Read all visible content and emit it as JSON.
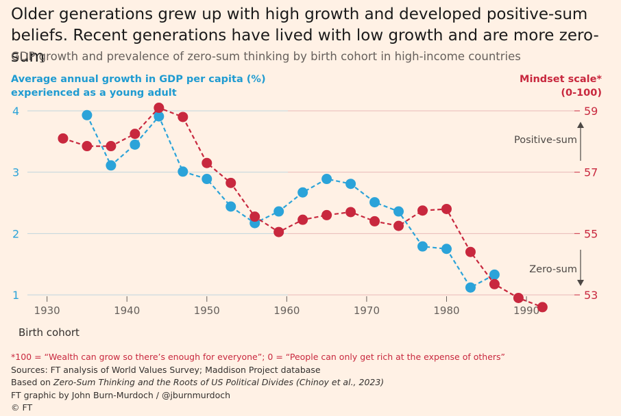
{
  "title": "Older generations grew up with high growth and developed positive-sum beliefs. Recent generations have lived with low growth and are more zero-sum",
  "subtitle": "GDP growth and prevalence of zero-sum thinking by birth cohort in high-income countries",
  "colors": {
    "blue": "#2BA3D9",
    "red": "#C8283E",
    "grid": "#E2C9B8",
    "background": "#FFF1E5"
  },
  "chart_data": {
    "type": "line",
    "xlabel": "Birth cohort",
    "x_ticks": [
      1930,
      1940,
      1950,
      1960,
      1970,
      1980,
      1990
    ],
    "xlim": [
      1926,
      1996
    ],
    "left_axis": {
      "label_line1": "Average annual growth in GDP per capita (%)",
      "label_line2": "experienced as a young adult",
      "ticks": [
        1,
        2,
        3,
        4
      ],
      "ylim": [
        0.75,
        4.1
      ]
    },
    "right_axis": {
      "label_line1": "Mindset scale*",
      "label_line2": "(0-100)",
      "ticks": [
        53,
        55,
        57,
        59
      ],
      "ylim": [
        52.45,
        59.9
      ]
    },
    "annotations": {
      "positive": "Positive-sum",
      "zero": "Zero-sum"
    },
    "series": [
      {
        "axis": "left",
        "color": "#2BA3D9",
        "x": [
          1935,
          1938,
          1941,
          1944,
          1947,
          1950,
          1953,
          1956,
          1959,
          1962,
          1965,
          1968,
          1971,
          1974,
          1977,
          1980,
          1983,
          1986
        ],
        "values": [
          3.93,
          3.11,
          3.45,
          3.91,
          3.01,
          2.89,
          2.44,
          2.17,
          2.36,
          2.67,
          2.89,
          2.81,
          2.51,
          2.36,
          1.79,
          1.75,
          1.12,
          1.33
        ]
      },
      {
        "axis": "right",
        "color": "#C8283E",
        "x": [
          1932,
          1935,
          1938,
          1941,
          1944,
          1947,
          1950,
          1953,
          1956,
          1959,
          1962,
          1965,
          1968,
          1971,
          1974,
          1977,
          1980,
          1983,
          1986,
          1989,
          1992
        ],
        "values": [
          58.1,
          57.85,
          57.85,
          58.25,
          59.1,
          58.8,
          57.3,
          56.65,
          55.55,
          55.05,
          55.45,
          55.6,
          55.7,
          55.4,
          55.25,
          55.75,
          55.8,
          54.4,
          53.35,
          52.9,
          52.6
        ]
      }
    ]
  },
  "footnote": "*100 = “Wealth can grow so there’s enough for everyone”; 0 = “People can only get rich at the expense of others”",
  "sources": "Sources: FT analysis of World Values Survey; Maddison Project database",
  "based_prefix": "Based on ",
  "based_italic": "Zero-Sum Thinking and the Roots of US Political Divides (Chinoy et al., 2023)",
  "credit": "FT graphic by John Burn-Murdoch / @jburnmurdoch",
  "copyright": "© FT"
}
